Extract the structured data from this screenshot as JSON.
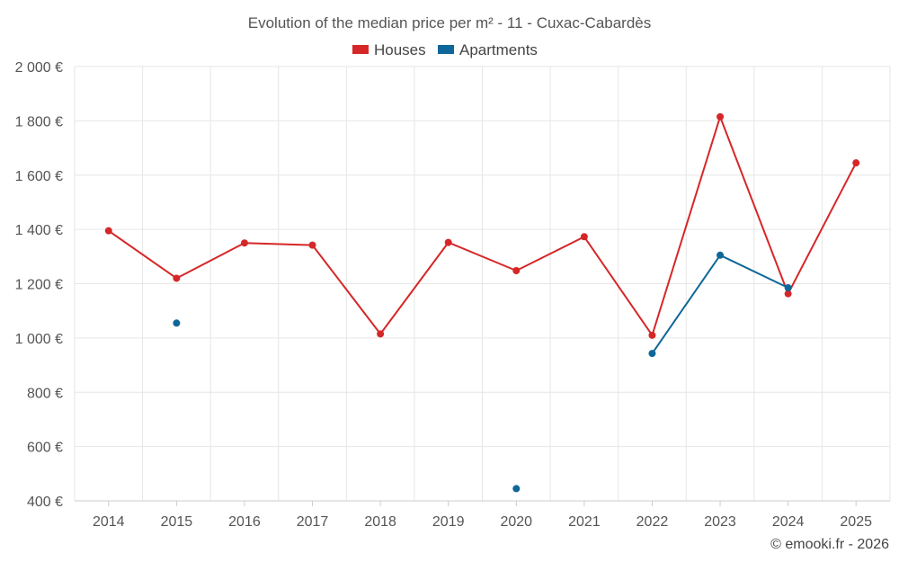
{
  "chart_data": {
    "type": "line",
    "title": "Evolution of the median price per m² - 11 - Cuxac-Cabardès",
    "categories": [
      "2014",
      "2015",
      "2016",
      "2017",
      "2018",
      "2019",
      "2020",
      "2021",
      "2022",
      "2023",
      "2024",
      "2025"
    ],
    "ylim": [
      400,
      2000
    ],
    "yticks": [
      400,
      600,
      800,
      1000,
      1200,
      1400,
      1600,
      1800,
      2000
    ],
    "ytick_labels": [
      "400 €",
      "600 €",
      "800 €",
      "1 000 €",
      "1 200 €",
      "1 400 €",
      "1 600 €",
      "1 800 €",
      "2 000 €"
    ],
    "grid": true,
    "legend_position": "top-center",
    "series": [
      {
        "name": "Houses",
        "color": "#d62728",
        "values": [
          1395,
          1220,
          1350,
          1342,
          1015,
          1352,
          1248,
          1373,
          1010,
          1815,
          1163,
          1645
        ]
      },
      {
        "name": "Apartments",
        "color": "#0f6698",
        "values": [
          null,
          1055,
          null,
          null,
          null,
          null,
          445,
          null,
          943,
          1305,
          1185,
          null
        ]
      }
    ]
  },
  "credit": "© emooki.fr - 2026"
}
